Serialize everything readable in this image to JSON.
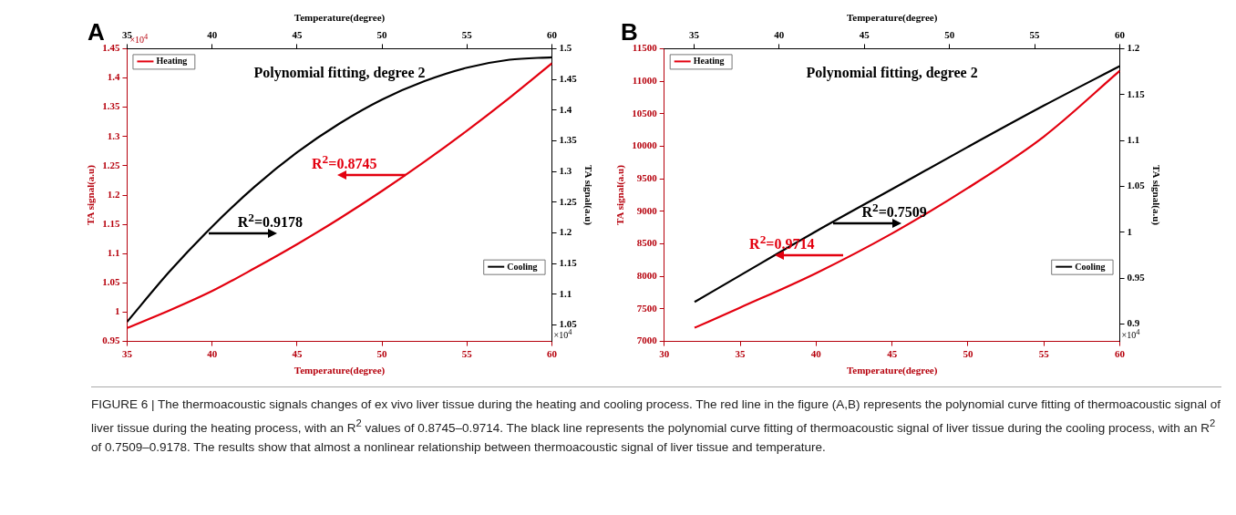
{
  "chart_data": [
    {
      "type": "line",
      "title": "Polynomial fitting, degree 2",
      "xlabel": "Temperature(degree)",
      "x2label": "Temperature(degree)",
      "ylabel": "TA signal(a.u)",
      "y2label": "TA signal(a.u)",
      "xlim": [
        35,
        60
      ],
      "xticks": [
        35,
        40,
        45,
        50,
        55,
        60
      ],
      "x2lim": [
        35,
        60
      ],
      "x2ticks": [
        35,
        40,
        45,
        50,
        55,
        60
      ],
      "ylim": [
        0.95,
        1.45
      ],
      "yticks": [
        0.95,
        1,
        1.05,
        1.1,
        1.15,
        1.2,
        1.25,
        1.3,
        1.35,
        1.4,
        1.45
      ],
      "y2lim": [
        1.023,
        1.5
      ],
      "y2ticks": [
        1.05,
        1.1,
        1.15,
        1.2,
        1.25,
        1.3,
        1.35,
        1.4,
        1.45,
        1.5
      ],
      "grid": false,
      "legend": "top left",
      "marker": "none",
      "line_style": "solid",
      "series": [
        {
          "name": "Heating",
          "color": "#e3000f",
          "x": [
            35,
            37.5,
            40,
            42.5,
            45,
            47.5,
            50,
            52.5,
            55,
            57.5,
            60
          ],
          "values": [
            0.973,
            1.003,
            1.036,
            1.075,
            1.116,
            1.16,
            1.207,
            1.257,
            1.31,
            1.366,
            1.425
          ]
        },
        {
          "name": "Cooling",
          "color": "#000000",
          "axis": "y2",
          "x": [
            35,
            37.5,
            40,
            42.5,
            45,
            47.5,
            50,
            52.5,
            55,
            57.5,
            60
          ],
          "values": [
            1.055,
            1.137,
            1.21,
            1.275,
            1.331,
            1.378,
            1.417,
            1.447,
            1.469,
            1.482,
            1.486
          ]
        }
      ],
      "annotations": [
        "A",
        "×10$^{4}$",
        "×10$^{4}$",
        "FIGURE 6 | The thermoacoustic signals changes of ex vivo liver tissue during the heating and cooling process. The red line in the figure (A,B) represents the polynomial curve fitting of thermoacoustic signal of liver tissue during the heating process, with an R$^{2}$ values of 0.8745–0.9714. The black line represents the polynomial curve fitting of thermoacoustic signal of liver tissue during the cooling process, with an R$^{2}$ of 0.7509–0.9178. The results show that almost a nonlinear relationship between thermoacoustic signal of liver tissue and temperature.",
        {
          "text": "R$^{2}$=0.8745",
          "x": 51.4,
          "y": 1.234
        },
        {
          "text": "R$^{2}$=0.9178",
          "x": 39.8,
          "y": 1.135
        }
      ]
    },
    {
      "type": "line",
      "title": "Polynomial fitting, degree 2",
      "xlabel": "Temperature(degree)",
      "x2label": "Temperature(degree)",
      "ylabel": "TA signal(a.u)",
      "y2label": "TA signal(a.u)",
      "xlim": [
        30,
        60
      ],
      "xticks": [
        30,
        35,
        40,
        45,
        50,
        55,
        60
      ],
      "x2lim": [
        33.25,
        60
      ],
      "x2ticks": [
        35,
        40,
        45,
        50,
        55,
        60
      ],
      "ylim": [
        7000,
        11500
      ],
      "yticks": [
        7000,
        7500,
        8000,
        8500,
        9000,
        9500,
        10000,
        10500,
        11000,
        11500
      ],
      "y2lim": [
        0.881,
        1.2
      ],
      "y2ticks": [
        0.9,
        0.95,
        1,
        1.05,
        1.1,
        1.15,
        1.2
      ],
      "grid": false,
      "legend": "top left",
      "marker": "none",
      "line_style": "solid",
      "series": [
        {
          "name": "Heating",
          "color": "#e3000f",
          "x": [
            32,
            35,
            40,
            45,
            50,
            55,
            60
          ],
          "values": [
            7210,
            7520,
            8050,
            8660,
            9360,
            10150,
            11160
          ]
        },
        {
          "name": "Cooling",
          "color": "#000000",
          "axis": "y2",
          "x": [
            32,
            35,
            40,
            45,
            50,
            55,
            60
          ],
          "values": [
            0.924,
            0.953,
            1.001,
            1.047,
            1.093,
            1.138,
            1.181
          ]
        }
      ],
      "annotations": [
        "B",
        "×10$^{4}$",
        {
          "text": "R$^{2}$=0.7509",
          "x": 41.1,
          "y": 8814
        },
        {
          "text": "R$^{2}$=0.9714",
          "x": 41.8,
          "y": 8322
        }
      ]
    }
  ]
}
